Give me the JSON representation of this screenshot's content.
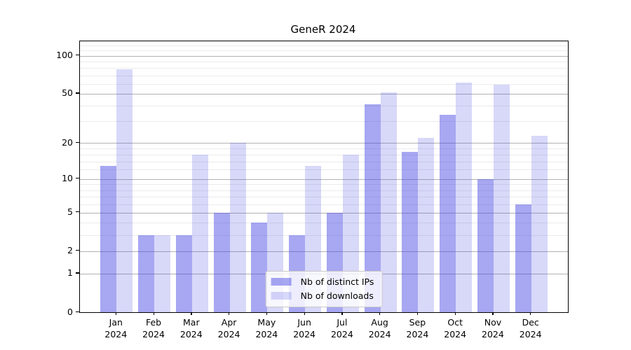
{
  "chart_data": {
    "type": "bar",
    "title": "GeneR 2024",
    "categories": [
      "Jan",
      "Feb",
      "Mar",
      "Apr",
      "May",
      "Jun",
      "Jul",
      "Aug",
      "Sep",
      "Oct",
      "Nov",
      "Dec"
    ],
    "x_year_label": "2024",
    "series": [
      {
        "name": "Nb of distinct IPs",
        "values": [
          13,
          3,
          3,
          5,
          4,
          3,
          5,
          41,
          17,
          34,
          10,
          6
        ],
        "color": "rgba(60,60,226,0.45)",
        "color_hex_on_white": "#a7a7f2"
      },
      {
        "name": "Nb of downloads",
        "values": [
          78,
          3,
          16,
          20,
          5,
          13,
          16,
          51,
          22,
          61,
          59,
          23
        ],
        "color": "rgba(60,60,226,0.20)",
        "color_hex_on_white": "#d9d9f9"
      }
    ],
    "xlabel": "",
    "ylabel": "",
    "yscale": "log1p",
    "ylim": [
      0,
      130
    ],
    "yticks": [
      0,
      1,
      2,
      5,
      10,
      20,
      50,
      100
    ],
    "minor_yticks": [
      3,
      4,
      6,
      7,
      8,
      9,
      12,
      14,
      16,
      18,
      30,
      40,
      60,
      70,
      80,
      90,
      110,
      120
    ],
    "grid": "on",
    "legend_position": "lower center",
    "grid_major_color": "#b2b2b2",
    "grid_minor_color": "#ebebeb",
    "spine_color": "#000000"
  }
}
